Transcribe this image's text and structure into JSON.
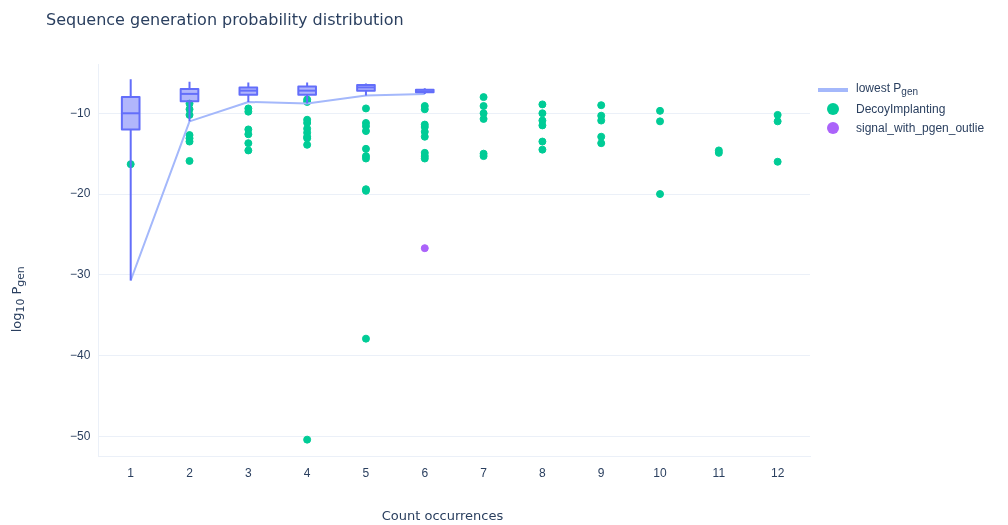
{
  "chart_data": {
    "type": "scatter",
    "title": "Sequence generation probability distribution",
    "xlabel": "Count occurrences",
    "ylabel": "log$_{10}$ P$_{gen}$",
    "x": [
      1,
      2,
      3,
      4,
      5,
      6
    ],
    "xlim": [
      0.45,
      12.55
    ],
    "xticks": [
      1,
      2,
      3,
      4,
      5,
      6,
      7,
      8,
      9,
      10,
      11,
      12
    ],
    "ylim": [
      -52.5,
      -3.9
    ],
    "yticks": [
      -50,
      -40,
      -30,
      -20,
      -10
    ],
    "grid": "y",
    "legend": "top right",
    "marker": "circle",
    "series": [
      {
        "type": "box",
        "color": "#636efa",
        "boxes": [
          {
            "low": -30.7,
            "q1": -12,
            "median": -10,
            "q3": -8,
            "high": -5.8
          },
          {
            "low": -11,
            "q1": -8.5,
            "median": -7.6,
            "q3": -7,
            "high": -6.1
          },
          {
            "low": -8.6,
            "q1": -7.7,
            "median": -7.2,
            "q3": -6.8,
            "high": -6.2
          },
          {
            "low": -8.8,
            "q1": -7.7,
            "median": -7.2,
            "q3": -6.7,
            "high": -6.2
          },
          {
            "low": -7.8,
            "q1": -7.2,
            "median": -6.8,
            "q3": -6.5,
            "high": -6.3
          },
          {
            "low": -7.6,
            "q1": -7.4,
            "median": -7.3,
            "q3": -7.1,
            "high": -6.9
          }
        ]
      },
      {
        "type": "line",
        "name": "lowest P$_{gen}$",
        "marker": "none",
        "color": "#a4b8fb",
        "values": [
          -30.7,
          -11,
          -8.6,
          -8.8,
          -7.8,
          -7.6
        ]
      },
      {
        "type": "scatter",
        "name": "DecoyImplanting",
        "color": "#00cc96",
        "x": [
          1,
          2,
          2,
          2,
          2,
          2,
          2,
          2,
          3,
          3,
          3,
          3,
          3,
          3,
          4,
          4,
          4,
          4,
          4,
          4,
          4,
          4,
          4,
          4,
          5,
          5,
          5,
          5,
          5,
          5,
          5,
          5,
          5,
          5,
          6,
          6,
          6,
          6,
          6,
          6,
          6,
          6,
          6,
          7,
          7,
          7,
          7,
          7,
          7,
          8,
          8,
          8,
          8,
          8,
          8,
          9,
          9,
          9,
          9,
          9,
          10,
          10,
          10,
          11,
          11,
          12,
          12,
          12
        ],
        "values": [
          -16.3,
          -8.8,
          -9.5,
          -10.2,
          -12.7,
          -13.1,
          -13.5,
          -15.9,
          -9.4,
          -9.8,
          -12,
          -12.6,
          -13.7,
          -14.6,
          -8.3,
          -8.6,
          -10.8,
          -11.2,
          -11.9,
          -12.4,
          -12.9,
          -13.1,
          -13.9,
          -50.4,
          -9.4,
          -11.2,
          -11.6,
          -12.2,
          -14.4,
          -15.3,
          -15.6,
          -19.4,
          -19.6,
          -37.9,
          -9.1,
          -9.5,
          -11.4,
          -11.7,
          -12.3,
          -12.9,
          -14.9,
          -15.3,
          -15.6,
          -8,
          -9.1,
          -10,
          -10.7,
          -15,
          -15.3,
          -8.9,
          -10,
          -10.9,
          -11.5,
          -13.5,
          -14.5,
          -9,
          -10.3,
          -10.9,
          -12.9,
          -13.7,
          -9.7,
          -11,
          -20,
          -14.6,
          -14.9,
          -10.2,
          -11,
          -16
        ]
      },
      {
        "name": "signal_with_pgen_outlie",
        "color": "#ab63fa",
        "x": [
          6
        ],
        "values": [
          -26.7
        ]
      }
    ]
  }
}
